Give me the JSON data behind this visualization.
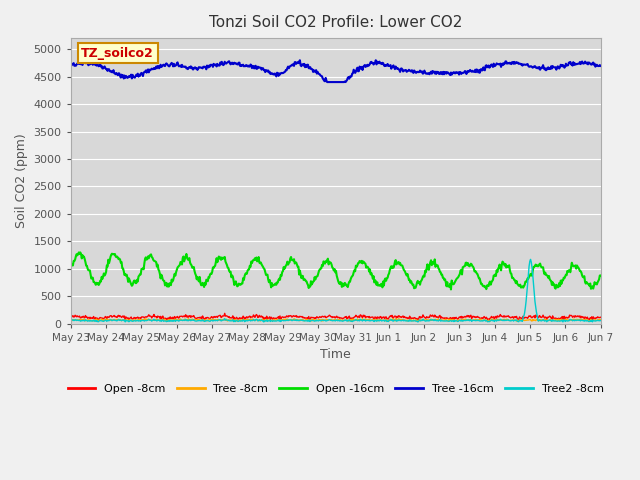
{
  "title": "Tonzi Soil CO2 Profile: Lower CO2",
  "xlabel": "Time",
  "ylabel": "Soil CO2 (ppm)",
  "ylim": [
    0,
    5200
  ],
  "yticks": [
    0,
    500,
    1000,
    1500,
    2000,
    2500,
    3000,
    3500,
    4000,
    4500,
    5000
  ],
  "background_color": "#f0f0f0",
  "plot_bg_color": "#d8d8d8",
  "legend_label": "TZ_soilco2",
  "legend_box_color": "#ffffcc",
  "legend_box_border": "#cc8800",
  "series": [
    {
      "label": "Open -8cm",
      "color": "#ff0000",
      "lw": 1.0
    },
    {
      "label": "Tree -8cm",
      "color": "#ffaa00",
      "lw": 1.0
    },
    {
      "label": "Open -16cm",
      "color": "#00dd00",
      "lw": 1.5
    },
    {
      "label": "Tree -16cm",
      "color": "#0000cc",
      "lw": 1.5
    },
    {
      "label": "Tree2 -8cm",
      "color": "#00cccc",
      "lw": 1.0
    }
  ],
  "x_tick_labels": [
    "May 23",
    "May 24",
    "May 25",
    "May 26",
    "May 27",
    "May 28",
    "May 29",
    "May 30",
    "May 31",
    "Jun 1",
    "Jun 2",
    "Jun 3",
    "Jun 4",
    "Jun 5",
    "Jun 6",
    "Jun 7"
  ],
  "n_days": 15,
  "pts_per_day": 48
}
